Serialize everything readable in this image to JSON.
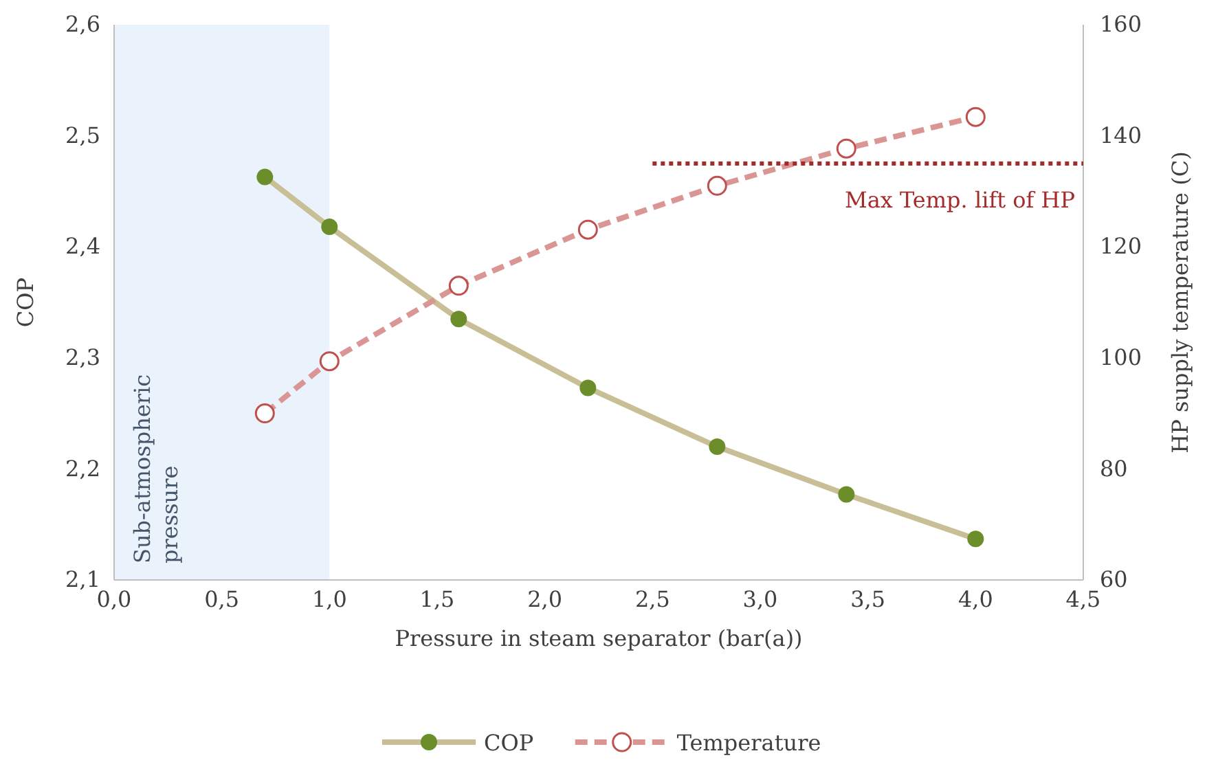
{
  "chart_data": {
    "type": "line",
    "xlabel": "Pressure in steam separator (bar(a))",
    "ylabel": "COP",
    "y2label": "HP supply temperature (C)",
    "xlim": [
      0,
      4.5
    ],
    "xticks": [
      {
        "value": 0,
        "label": "0,0"
      },
      {
        "value": 0.5,
        "label": "0,5"
      },
      {
        "value": 1,
        "label": "1,0"
      },
      {
        "value": 1.5,
        "label": "1,5"
      },
      {
        "value": 2,
        "label": "2,0"
      },
      {
        "value": 2.5,
        "label": "2,5"
      },
      {
        "value": 3,
        "label": "3,0"
      },
      {
        "value": 3.5,
        "label": "3,5"
      },
      {
        "value": 4,
        "label": "4,0"
      },
      {
        "value": 4.5,
        "label": "4,5"
      }
    ],
    "ylim": [
      2.1,
      2.6
    ],
    "yticks": [
      {
        "value": 2.1,
        "label": "2,1"
      },
      {
        "value": 2.2,
        "label": "2,2"
      },
      {
        "value": 2.3,
        "label": "2,3"
      },
      {
        "value": 2.4,
        "label": "2,4"
      },
      {
        "value": 2.5,
        "label": "2,5"
      },
      {
        "value": 2.6,
        "label": "2,6"
      }
    ],
    "y2lim": [
      60,
      160
    ],
    "y2ticks": [
      60,
      80,
      100,
      120,
      140,
      160
    ],
    "x": [
      0.7,
      1.0,
      1.6,
      2.2,
      2.8,
      3.4,
      4.0
    ],
    "series": [
      {
        "name": "COP",
        "color": "#c8bf96",
        "marker": "circle",
        "line_style": "solid",
        "values": [
          2.463,
          2.418,
          2.335,
          2.273,
          2.22,
          2.177,
          2.137
        ]
      },
      {
        "name": "Temperature",
        "color": "#d99694",
        "marker": "circle",
        "line_style": "dashed",
        "axis": "y2",
        "values": [
          90,
          99.4,
          113,
          123.1,
          131,
          137.7,
          143.4
        ]
      },
      {
        "color": "#a52a2a",
        "marker": "none",
        "line_style": "dotted",
        "axis": "y2",
        "x": [
          2.5,
          4.5
        ],
        "values": [
          135,
          135
        ]
      }
    ],
    "bands": [
      {
        "axis": "x",
        "from": 0,
        "to": 1,
        "label": "Sub-atmospheric pressure",
        "color": "#eaf2fb"
      }
    ],
    "annotations": [
      "Max Temp. lift of HP"
    ],
    "grid": false,
    "legend": "bottom"
  }
}
